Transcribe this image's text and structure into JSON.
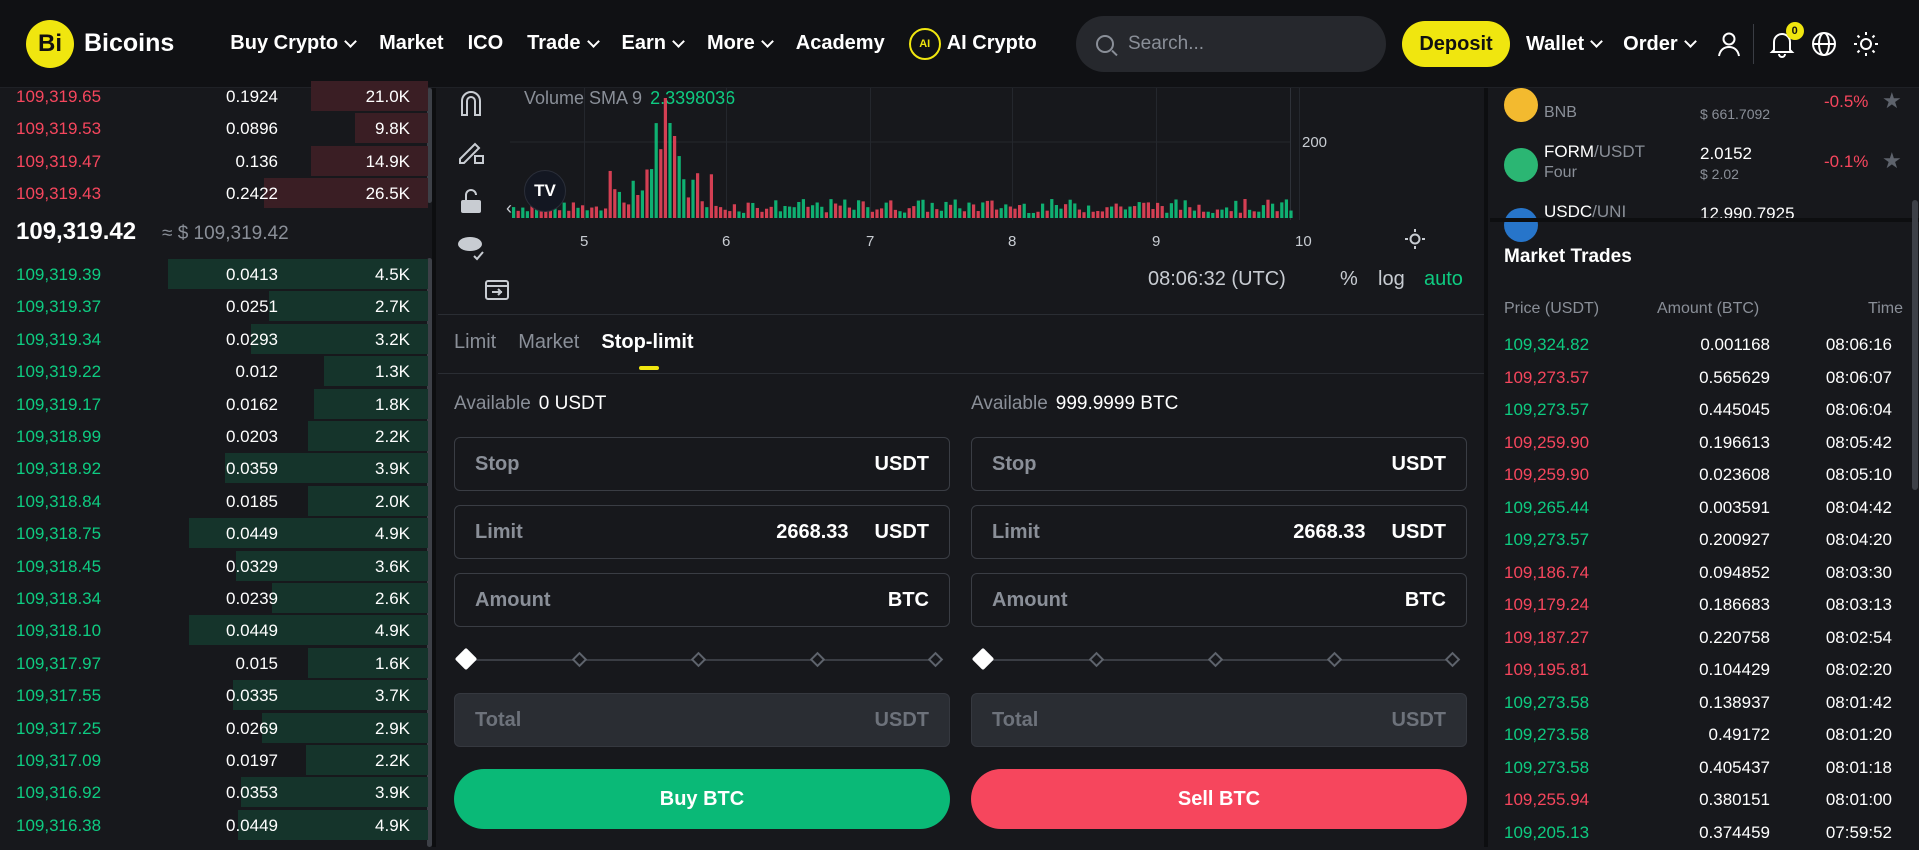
{
  "header": {
    "logo_mark": "Bi",
    "logo_text": "Bicoins",
    "nav": [
      {
        "label": "Buy Crypto",
        "dropdown": true
      },
      {
        "label": "Market",
        "dropdown": false
      },
      {
        "label": "ICO",
        "dropdown": false
      },
      {
        "label": "Trade",
        "dropdown": true
      },
      {
        "label": "Earn",
        "dropdown": true
      },
      {
        "label": "More",
        "dropdown": true
      },
      {
        "label": "Academy",
        "dropdown": false
      }
    ],
    "ai_label": "AI Crypto",
    "ai_icon_text": "AI",
    "search_placeholder": "Search...",
    "deposit_label": "Deposit",
    "wallet_label": "Wallet",
    "order_label": "Order",
    "notif_count": "0",
    "accent": "#f0e60f"
  },
  "orderbook": {
    "asks": [
      {
        "price": "109,319.65",
        "amount": "0.1924",
        "total": "21.0K",
        "depth": 0.45
      },
      {
        "price": "109,319.53",
        "amount": "0.0896",
        "total": "9.8K",
        "depth": 0.28
      },
      {
        "price": "109,319.47",
        "amount": "0.136",
        "total": "14.9K",
        "depth": 0.45
      },
      {
        "price": "109,319.43",
        "amount": "0.2422",
        "total": "26.5K",
        "depth": 0.63
      }
    ],
    "mid_price": "109,319.42",
    "mid_sub": "≈ $ 109,319.42",
    "bids": [
      {
        "price": "109,319.39",
        "amount": "0.0413",
        "total": "4.5K",
        "depth": 1.0
      },
      {
        "price": "109,319.37",
        "amount": "0.0251",
        "total": "2.7K",
        "depth": 0.61
      },
      {
        "price": "109,319.34",
        "amount": "0.0293",
        "total": "3.2K",
        "depth": 0.68
      },
      {
        "price": "109,319.22",
        "amount": "0.012",
        "total": "1.3K",
        "depth": 0.4
      },
      {
        "price": "109,319.17",
        "amount": "0.0162",
        "total": "1.8K",
        "depth": 0.44
      },
      {
        "price": "109,318.99",
        "amount": "0.0203",
        "total": "2.2K",
        "depth": 0.46
      },
      {
        "price": "109,318.92",
        "amount": "0.0359",
        "total": "3.9K",
        "depth": 0.78
      },
      {
        "price": "109,318.84",
        "amount": "0.0185",
        "total": "2.0K",
        "depth": 0.46
      },
      {
        "price": "109,318.75",
        "amount": "0.0449",
        "total": "4.9K",
        "depth": 0.92
      },
      {
        "price": "109,318.45",
        "amount": "0.0329",
        "total": "3.6K",
        "depth": 0.74
      },
      {
        "price": "109,318.34",
        "amount": "0.0239",
        "total": "2.6K",
        "depth": 0.6
      },
      {
        "price": "109,318.10",
        "amount": "0.0449",
        "total": "4.9K",
        "depth": 0.92
      },
      {
        "price": "109,317.97",
        "amount": "0.015",
        "total": "1.6K",
        "depth": 0.46
      },
      {
        "price": "109,317.55",
        "amount": "0.0335",
        "total": "3.7K",
        "depth": 0.75
      },
      {
        "price": "109,317.25",
        "amount": "0.0269",
        "total": "2.9K",
        "depth": 0.64
      },
      {
        "price": "109,317.09",
        "amount": "0.0197",
        "total": "2.2K",
        "depth": 0.47
      },
      {
        "price": "109,316.92",
        "amount": "0.0353",
        "total": "3.9K",
        "depth": 0.72
      },
      {
        "price": "109,316.38",
        "amount": "0.0449",
        "total": "4.9K",
        "depth": 0.73
      }
    ]
  },
  "chart": {
    "indicator_label": "Volume SMA 9",
    "indicator_value": "2.3398036",
    "y_tick": "200",
    "x_ticks": [
      "5",
      "6",
      "7",
      "8",
      "9",
      "10"
    ],
    "time": "08:06:32 (UTC)",
    "pct_label": "%",
    "log_label": "log",
    "auto_label": "auto",
    "tv_logo": "TV",
    "collapse_arrow": "‹"
  },
  "form": {
    "tabs": [
      "Limit",
      "Market",
      "Stop-limit"
    ],
    "active_tab": "Stop-limit",
    "buy": {
      "available_label": "Available",
      "available_value": "0 USDT",
      "stop": {
        "label": "Stop",
        "value": "",
        "unit": "USDT"
      },
      "limit": {
        "label": "Limit",
        "value": "2668.33",
        "unit": "USDT"
      },
      "amount": {
        "label": "Amount",
        "value": "",
        "unit": "BTC"
      },
      "total": {
        "label": "Total",
        "value": "",
        "unit": "USDT"
      },
      "button": "Buy BTC"
    },
    "sell": {
      "available_label": "Available",
      "available_value": "999.9999 BTC",
      "stop": {
        "label": "Stop",
        "value": "",
        "unit": "USDT"
      },
      "limit": {
        "label": "Limit",
        "value": "2668.33",
        "unit": "USDT"
      },
      "amount": {
        "label": "Amount",
        "value": "",
        "unit": "BTC"
      },
      "total": {
        "label": "Total",
        "value": "",
        "unit": "USDT"
      },
      "button": "Sell BTC"
    },
    "slider_value": 0
  },
  "markets": [
    {
      "base": "",
      "quote": "",
      "sub": "BNB",
      "price": "",
      "price_sub": "$ 661.7092",
      "change": "-0.5%",
      "icon_color": "#f3ba2f"
    },
    {
      "base": "FORM",
      "quote": "/USDT",
      "sub": "Four",
      "price": "2.0152",
      "price_sub": "$ 2.02",
      "change": "-0.1%",
      "icon_color": "#2bb673"
    },
    {
      "base": "USDC",
      "quote": "/UNI",
      "sub": "",
      "price": "12,990.7925",
      "price_sub": "",
      "change": "",
      "icon_color": "#2775ca"
    }
  ],
  "market_trades": {
    "title": "Market Trades",
    "headers": [
      "Price (USDT)",
      "Amount (BTC)",
      "Time"
    ],
    "rows": [
      {
        "price": "109,324.82",
        "amount": "0.001168",
        "time": "08:06:16",
        "side": "up"
      },
      {
        "price": "109,273.57",
        "amount": "0.565629",
        "time": "08:06:07",
        "side": "down"
      },
      {
        "price": "109,273.57",
        "amount": "0.445045",
        "time": "08:06:04",
        "side": "up"
      },
      {
        "price": "109,259.90",
        "amount": "0.196613",
        "time": "08:05:42",
        "side": "down"
      },
      {
        "price": "109,259.90",
        "amount": "0.023608",
        "time": "08:05:10",
        "side": "down"
      },
      {
        "price": "109,265.44",
        "amount": "0.003591",
        "time": "08:04:42",
        "side": "up"
      },
      {
        "price": "109,273.57",
        "amount": "0.200927",
        "time": "08:04:20",
        "side": "up"
      },
      {
        "price": "109,186.74",
        "amount": "0.094852",
        "time": "08:03:30",
        "side": "down"
      },
      {
        "price": "109,179.24",
        "amount": "0.186683",
        "time": "08:03:13",
        "side": "down"
      },
      {
        "price": "109,187.27",
        "amount": "0.220758",
        "time": "08:02:54",
        "side": "down"
      },
      {
        "price": "109,195.81",
        "amount": "0.104429",
        "time": "08:02:20",
        "side": "down"
      },
      {
        "price": "109,273.58",
        "amount": "0.138937",
        "time": "08:01:42",
        "side": "up"
      },
      {
        "price": "109,273.58",
        "amount": "0.49172",
        "time": "08:01:20",
        "side": "up"
      },
      {
        "price": "109,273.58",
        "amount": "0.405437",
        "time": "08:01:18",
        "side": "up"
      },
      {
        "price": "109,255.94",
        "amount": "0.380151",
        "time": "08:01:00",
        "side": "down"
      },
      {
        "price": "109,205.13",
        "amount": "0.374459",
        "time": "07:59:52",
        "side": "up"
      }
    ]
  },
  "colors": {
    "up": "#0ecb81",
    "down": "#f6465d",
    "accent": "#f0e60f"
  }
}
